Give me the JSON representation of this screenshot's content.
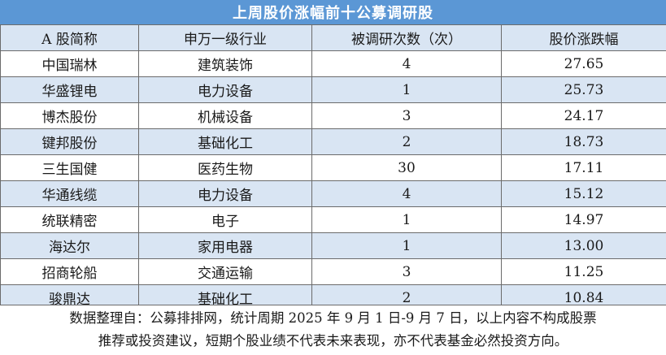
{
  "title": "上周股价涨幅前十公募调研股",
  "headers": [
    "A 股简称",
    "申万一级行业",
    "被调研次数（次）",
    "股价涨跌幅"
  ],
  "rows": [
    [
      "中国瑞林",
      "建筑装饰",
      "4",
      "27.65"
    ],
    [
      "华盛锂电",
      "电力设备",
      "1",
      "25.73"
    ],
    [
      "博杰股份",
      "机械设备",
      "3",
      "24.17"
    ],
    [
      "键邦股份",
      "基础化工",
      "2",
      "18.73"
    ],
    [
      "三生国健",
      "医药生物",
      "30",
      "17.11"
    ],
    [
      "华通线缆",
      "电力设备",
      "4",
      "15.12"
    ],
    [
      "统联精密",
      "电子",
      "1",
      "14.97"
    ],
    [
      "海达尔",
      "家用电器",
      "1",
      "13.00"
    ],
    [
      "招商轮船",
      "交通运输",
      "3",
      "11.25"
    ],
    [
      "骏鼎达",
      "基础化工",
      "2",
      "10.84"
    ]
  ],
  "footnote": {
    "line1": "数据整理自：公募排排网，统计周期 2025 年 9 月 1 日-9 月 7 日，以上内容不构成股票",
    "line2": "推荐或投资建议，短期个股业绩不代表未来表现，亦不代表基金必然投资方向。"
  },
  "colors": {
    "title_bg": "#5b97d5",
    "alt_row_bg": "#d9e5f3",
    "border": "#6b6b6b"
  }
}
